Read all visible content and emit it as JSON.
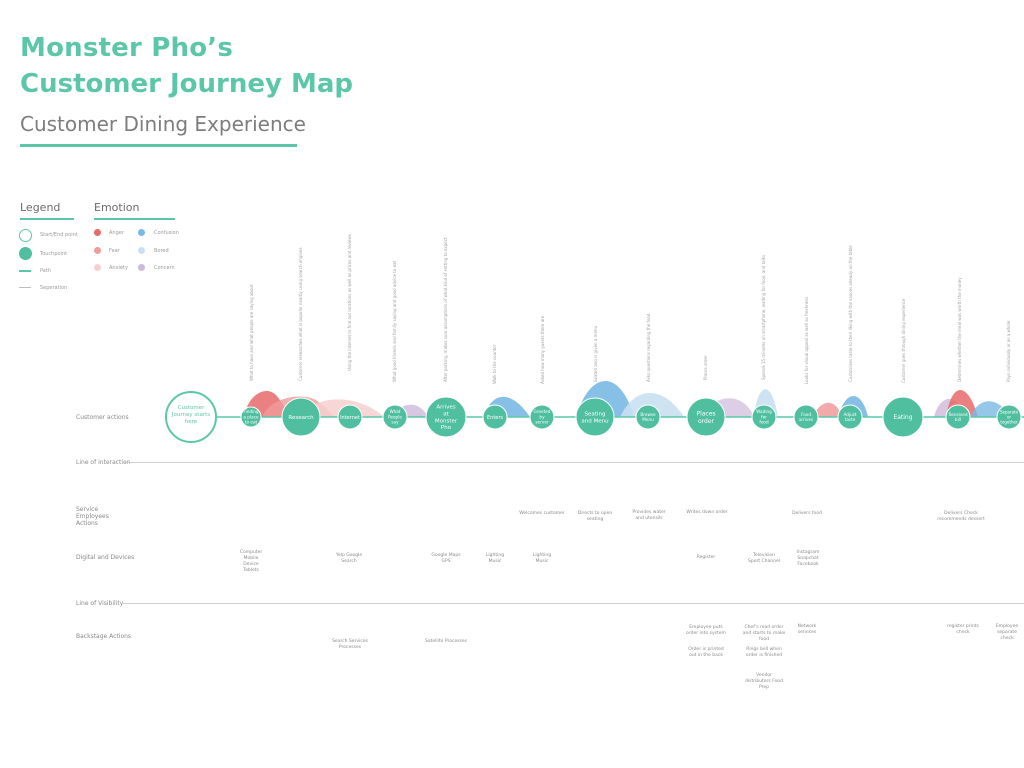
{
  "title": {
    "line1": "Monster Pho’s",
    "line2": "Customer Journey Map",
    "subtitle": "Customer Dining Experience"
  },
  "legend": {
    "heading": "Legend",
    "items": [
      {
        "label": "Start/End point"
      },
      {
        "label": "Touchpoint"
      },
      {
        "label": "Path"
      },
      {
        "label": "Seperation"
      }
    ]
  },
  "emotion": {
    "heading": "Emotion",
    "items": [
      {
        "label": "Anger",
        "color": "#e86a6a"
      },
      {
        "label": "Fear",
        "color": "#f09a9a"
      },
      {
        "label": "Anxiety",
        "color": "#f6cfcf"
      },
      {
        "label": "Confusion",
        "color": "#7ab9e3"
      },
      {
        "label": "Bored",
        "color": "#c8e0f0"
      },
      {
        "label": "Concern",
        "color": "#cdb9d9"
      }
    ]
  },
  "rows": {
    "customer_actions": "Customer actions",
    "line_of_interaction": "Line of interaction",
    "service_employees": "Service Employees Actions",
    "digital_devices": "Digital and Devices",
    "line_of_visibility": "Line of Visibility",
    "backstage": "Backstage Actions"
  },
  "start_node": "Customer Journey starts here",
  "touchpoints": [
    {
      "label": "Finding a place to eat"
    },
    {
      "label": "Research"
    },
    {
      "label": "Internet"
    },
    {
      "label": "What People say"
    },
    {
      "label": "Arrives at Monster Pho"
    },
    {
      "label": "Enters"
    },
    {
      "label": "Greeted by server"
    },
    {
      "label": "Seating and Menu"
    },
    {
      "label": "Browse Menu"
    },
    {
      "label": "Places order"
    },
    {
      "label": "Waiting for food"
    },
    {
      "label": "Food arrives"
    },
    {
      "label": "Adjust taste"
    },
    {
      "label": "Eating"
    },
    {
      "label": "Received bill"
    },
    {
      "label": "Separate or together"
    }
  ],
  "service_actions": [
    {
      "label": "Welcomes customer"
    },
    {
      "label": "Directs to open seating"
    },
    {
      "label": "Provides water and utensils"
    },
    {
      "label": "Writes down order"
    },
    {
      "label": "Delivers food"
    },
    {
      "label": "Delivers Check recommends dessert"
    }
  ],
  "digital": [
    {
      "label": "Computer Mobile Device Tablets"
    },
    {
      "label": "Yelp Google Search"
    },
    {
      "label": "Google Maps GPS"
    },
    {
      "label": "Lighting Music"
    },
    {
      "label": "Lighting Music"
    },
    {
      "label": "Register"
    },
    {
      "label": "Television Sport Channel"
    },
    {
      "label": "Instagram Snapchat Facebook"
    }
  ],
  "backstage": [
    {
      "label": "Search Services Processes"
    },
    {
      "label": "Satellite Processes"
    },
    {
      "label": "Employee puts order into system"
    },
    {
      "label": "Order is printed out in the back"
    },
    {
      "label": "Chef’s read order and starts to make food"
    },
    {
      "label": "Rings bell when order is finished"
    },
    {
      "label": "Vendor distributors Food Prep"
    },
    {
      "label": "Network services"
    },
    {
      "label": "register prints check"
    },
    {
      "label": "Employee separate check"
    }
  ],
  "thoughts": [
    {
      "label": "What to have and what people are saying about"
    },
    {
      "label": "Customer researches what is popular nearby using search engines"
    },
    {
      "label": "Using the internet to find out locations as well as prices and reviews"
    },
    {
      "label": "What good friends and family saying and good advice to eat"
    },
    {
      "label": "After parking, makes sure assumptions of what kind of setting to expect"
    },
    {
      "label": "Walk to the counter"
    },
    {
      "label": "Asked how many guests there are"
    },
    {
      "label": "Seated and is given a menu"
    },
    {
      "label": "Asks questions regarding the food"
    },
    {
      "label": "Places order"
    },
    {
      "label": "Spends 15 minutes on smartphone, waiting for food, and talks"
    },
    {
      "label": "Looks for visual appeal as well as freshness"
    },
    {
      "label": "Customizes taste to their liking with the sauces already on the table"
    },
    {
      "label": "Customer goes through dining experience"
    },
    {
      "label": "Determines whether the meal was worth the money"
    },
    {
      "label": "Pays individually or as a whole"
    }
  ]
}
